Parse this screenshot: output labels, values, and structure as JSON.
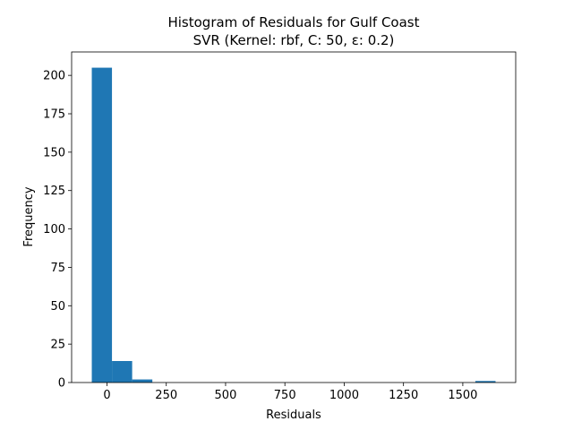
{
  "chart_data": {
    "type": "histogram",
    "title": "Histogram of Residuals for Gulf Coast",
    "subtitle": "SVR (Kernel: rbf, C: 50, ε: 0.2)",
    "x_label": "Residuals",
    "y_label": "Frequency",
    "bins": [
      -64,
      21.1,
      106.2,
      191.3,
      276.4,
      361.5,
      446.6,
      531.7,
      616.8,
      701.9,
      787,
      872.1,
      957.2,
      1042.3,
      1127.4,
      1212.5,
      1297.6,
      1382.7,
      1467.8,
      1552.9,
      1638
    ],
    "values": [
      205,
      14,
      2,
      0,
      0,
      0,
      0,
      0,
      0,
      0,
      0,
      0,
      0,
      0,
      0,
      0,
      0,
      0,
      0,
      1
    ],
    "color": "#1f77b4",
    "xlim": [
      -149,
      1723
    ],
    "xticks": [
      0,
      250,
      500,
      750,
      1000,
      1250,
      1500
    ],
    "ylim": [
      0,
      215.25
    ],
    "yticks": [
      0,
      25,
      50,
      75,
      100,
      125,
      150,
      175,
      200
    ],
    "grid": false
  }
}
